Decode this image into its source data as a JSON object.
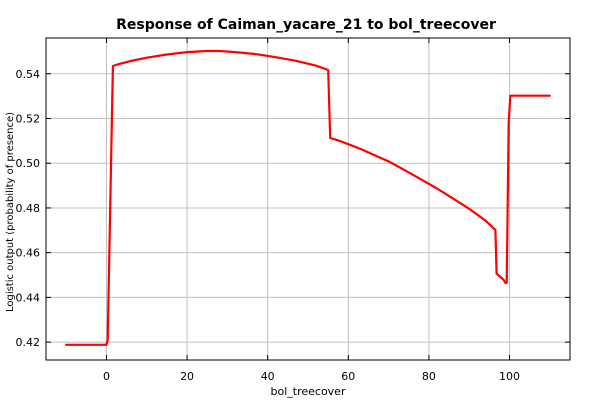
{
  "chart_data": {
    "type": "line",
    "title": "Response of Caiman_yacare_21 to bol_treecover",
    "xlabel": "bol_treecover",
    "ylabel": "Logistic output (probability of presence)",
    "xlim": [
      -15,
      115
    ],
    "ylim": [
      0.412,
      0.556
    ],
    "x_ticks": [
      0,
      20,
      40,
      60,
      80,
      100
    ],
    "y_ticks": [
      0.42,
      0.44,
      0.46,
      0.48,
      0.5,
      0.52,
      0.54
    ],
    "grid": true,
    "line_color": "#ff0000",
    "series": [
      {
        "x": [
          -10,
          -5,
          0,
          0.3,
          1.6,
          3,
          6,
          10,
          15,
          20,
          25,
          28,
          32,
          37,
          42,
          47,
          52,
          55,
          55.5,
          57.5,
          60,
          63,
          66,
          70,
          74,
          78,
          82,
          86,
          90,
          94,
          96.5,
          96.8,
          98.5,
          99,
          99.3,
          99.8,
          100.2,
          105,
          110
        ],
        "y": [
          0.4188,
          0.4188,
          0.4188,
          0.421,
          0.5435,
          0.5443,
          0.5457,
          0.5472,
          0.5486,
          0.5497,
          0.5502,
          0.5502,
          0.5497,
          0.5488,
          0.5474,
          0.5458,
          0.5436,
          0.5417,
          0.5113,
          0.5102,
          0.5085,
          0.5064,
          0.504,
          0.5008,
          0.4969,
          0.4928,
          0.4887,
          0.4842,
          0.4796,
          0.4744,
          0.4702,
          0.4506,
          0.4479,
          0.4465,
          0.4465,
          0.518,
          0.5302,
          0.5302,
          0.5302
        ]
      }
    ]
  }
}
